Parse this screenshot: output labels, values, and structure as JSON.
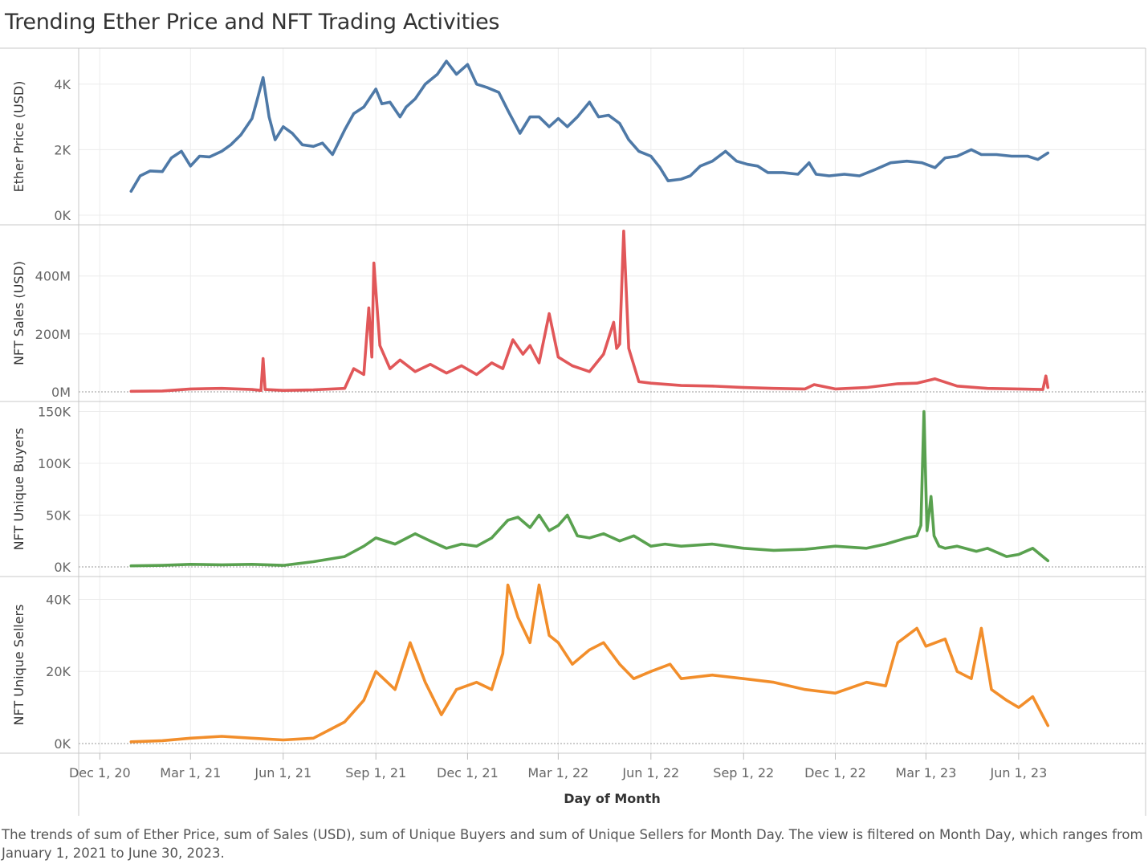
{
  "title": "Trending Ether Price and NFT Trading Activities",
  "caption": "The trends of sum of Ether Price, sum of Sales (USD), sum of Unique Buyers and sum of Unique Sellers for Month Day. The view is filtered on Month Day, which ranges from January 1, 2021 to June 30, 2023.",
  "chart_data": {
    "type": "line",
    "xlabel": "Day of Month",
    "x_ticks": [
      "Dec 1, 20",
      "Mar 1, 21",
      "Jun 1, 21",
      "Sep 1, 21",
      "Dec 1, 21",
      "Mar 1, 22",
      "Jun 1, 22",
      "Sep 1, 22",
      "Dec 1, 22",
      "Mar 1, 23",
      "Jun 1, 23"
    ],
    "x_range": [
      "2020-11-10",
      "2023-10-05"
    ],
    "grid": true,
    "panels": [
      {
        "ylabel": "Ether Price (USD)",
        "color": "#4e79a7",
        "ylim": [
          0,
          4950
        ],
        "y_ticks": [
          {
            "v": 0,
            "label": "0K"
          },
          {
            "v": 2000,
            "label": "2K"
          },
          {
            "v": 4000,
            "label": "4K"
          }
        ],
        "zero_line": false,
        "series": [
          {
            "name": "Ether Price",
            "x": [
              "2021-01-01",
              "2021-01-10",
              "2021-01-20",
              "2021-02-01",
              "2021-02-10",
              "2021-02-20",
              "2021-03-01",
              "2021-03-10",
              "2021-03-20",
              "2021-04-01",
              "2021-04-10",
              "2021-04-20",
              "2021-05-01",
              "2021-05-06",
              "2021-05-12",
              "2021-05-18",
              "2021-05-24",
              "2021-06-01",
              "2021-06-10",
              "2021-06-20",
              "2021-07-01",
              "2021-07-10",
              "2021-07-20",
              "2021-08-01",
              "2021-08-10",
              "2021-08-20",
              "2021-09-01",
              "2021-09-07",
              "2021-09-15",
              "2021-09-25",
              "2021-10-01",
              "2021-10-10",
              "2021-10-20",
              "2021-11-01",
              "2021-11-10",
              "2021-11-20",
              "2021-12-01",
              "2021-12-10",
              "2021-12-20",
              "2022-01-01",
              "2022-01-10",
              "2022-01-22",
              "2022-02-01",
              "2022-02-10",
              "2022-02-20",
              "2022-03-01",
              "2022-03-10",
              "2022-03-20",
              "2022-04-01",
              "2022-04-10",
              "2022-04-20",
              "2022-05-01",
              "2022-05-10",
              "2022-05-20",
              "2022-06-01",
              "2022-06-10",
              "2022-06-18",
              "2022-07-01",
              "2022-07-10",
              "2022-07-20",
              "2022-08-01",
              "2022-08-14",
              "2022-08-25",
              "2022-09-05",
              "2022-09-15",
              "2022-09-25",
              "2022-10-10",
              "2022-10-25",
              "2022-11-05",
              "2022-11-12",
              "2022-11-25",
              "2022-12-10",
              "2022-12-25",
              "2023-01-10",
              "2023-01-25",
              "2023-02-10",
              "2023-02-25",
              "2023-03-10",
              "2023-03-20",
              "2023-04-01",
              "2023-04-15",
              "2023-04-25",
              "2023-05-10",
              "2023-05-25",
              "2023-06-10",
              "2023-06-20",
              "2023-06-30"
            ],
            "y": [
              730,
              1200,
              1350,
              1330,
              1750,
              1950,
              1500,
              1800,
              1780,
              1950,
              2150,
              2450,
              2950,
              3500,
              4200,
              3000,
              2300,
              2700,
              2500,
              2150,
              2100,
              2200,
              1850,
              2600,
              3100,
              3300,
              3850,
              3400,
              3450,
              3000,
              3300,
              3550,
              4000,
              4300,
              4700,
              4300,
              4600,
              4000,
              3900,
              3750,
              3200,
              2500,
              3000,
              3000,
              2700,
              2950,
              2700,
              3000,
              3450,
              3000,
              3050,
              2800,
              2300,
              1950,
              1800,
              1450,
              1050,
              1100,
              1200,
              1500,
              1650,
              1950,
              1650,
              1550,
              1500,
              1300,
              1300,
              1250,
              1600,
              1250,
              1200,
              1250,
              1200,
              1400,
              1600,
              1650,
              1600,
              1450,
              1750,
              1800,
              2000,
              1850,
              1850,
              1800,
              1800,
              1700,
              1900
            ]
          }
        ]
      },
      {
        "ylabel": "NFT Sales (USD)",
        "color": "#e15759",
        "ylim": [
          0,
          560000000
        ],
        "y_ticks": [
          {
            "v": 0,
            "label": "0M"
          },
          {
            "v": 200000000,
            "label": "200M"
          },
          {
            "v": 400000000,
            "label": "400M"
          }
        ],
        "zero_line": true,
        "series": [
          {
            "name": "NFT Sales",
            "x": [
              "2021-01-01",
              "2021-02-01",
              "2021-03-01",
              "2021-04-01",
              "2021-05-01",
              "2021-05-10",
              "2021-05-12",
              "2021-05-14",
              "2021-06-01",
              "2021-07-01",
              "2021-08-01",
              "2021-08-10",
              "2021-08-20",
              "2021-08-25",
              "2021-08-28",
              "2021-08-30",
              "2021-09-05",
              "2021-09-15",
              "2021-09-25",
              "2021-10-10",
              "2021-10-25",
              "2021-11-10",
              "2021-11-25",
              "2021-12-10",
              "2021-12-25",
              "2022-01-05",
              "2022-01-15",
              "2022-01-25",
              "2022-02-01",
              "2022-02-10",
              "2022-02-20",
              "2022-03-01",
              "2022-03-15",
              "2022-04-01",
              "2022-04-15",
              "2022-04-25",
              "2022-04-28",
              "2022-05-01",
              "2022-05-05",
              "2022-05-10",
              "2022-05-20",
              "2022-06-01",
              "2022-07-01",
              "2022-08-01",
              "2022-09-01",
              "2022-10-01",
              "2022-11-01",
              "2022-11-10",
              "2022-12-01",
              "2023-01-01",
              "2023-02-01",
              "2023-02-20",
              "2023-03-10",
              "2023-04-01",
              "2023-05-01",
              "2023-06-01",
              "2023-06-25",
              "2023-06-28",
              "2023-06-30"
            ],
            "y": [
              2000000,
              3000000,
              10000000,
              12000000,
              8000000,
              5000000,
              115000000,
              8000000,
              5000000,
              7000000,
              12000000,
              80000000,
              60000000,
              290000000,
              120000000,
              445000000,
              160000000,
              80000000,
              110000000,
              70000000,
              95000000,
              65000000,
              90000000,
              60000000,
              100000000,
              80000000,
              180000000,
              130000000,
              160000000,
              100000000,
              270000000,
              120000000,
              90000000,
              70000000,
              130000000,
              240000000,
              150000000,
              165000000,
              555000000,
              150000000,
              35000000,
              30000000,
              22000000,
              20000000,
              15000000,
              12000000,
              10000000,
              25000000,
              10000000,
              15000000,
              28000000,
              30000000,
              45000000,
              20000000,
              12000000,
              10000000,
              8000000,
              55000000,
              15000000
            ]
          }
        ]
      },
      {
        "ylabel": "NFT Unique Buyers",
        "color": "#59a14f",
        "ylim": [
          0,
          155000
        ],
        "y_ticks": [
          {
            "v": 0,
            "label": "0K"
          },
          {
            "v": 50000,
            "label": "50K"
          },
          {
            "v": 100000,
            "label": "100K"
          },
          {
            "v": 150000,
            "label": "150K"
          }
        ],
        "zero_line": true,
        "series": [
          {
            "name": "NFT Unique Buyers",
            "x": [
              "2021-01-01",
              "2021-02-01",
              "2021-03-01",
              "2021-04-01",
              "2021-05-01",
              "2021-06-01",
              "2021-07-01",
              "2021-08-01",
              "2021-08-20",
              "2021-09-01",
              "2021-09-20",
              "2021-10-10",
              "2021-10-25",
              "2021-11-10",
              "2021-11-25",
              "2021-12-10",
              "2021-12-25",
              "2022-01-10",
              "2022-01-20",
              "2022-02-01",
              "2022-02-10",
              "2022-02-20",
              "2022-03-01",
              "2022-03-10",
              "2022-03-20",
              "2022-04-01",
              "2022-04-15",
              "2022-05-01",
              "2022-05-15",
              "2022-06-01",
              "2022-06-15",
              "2022-07-01",
              "2022-08-01",
              "2022-09-01",
              "2022-10-01",
              "2022-11-01",
              "2022-12-01",
              "2023-01-01",
              "2023-01-20",
              "2023-02-10",
              "2023-02-20",
              "2023-02-24",
              "2023-02-27",
              "2023-03-02",
              "2023-03-06",
              "2023-03-09",
              "2023-03-14",
              "2023-03-20",
              "2023-04-01",
              "2023-04-20",
              "2023-05-01",
              "2023-05-20",
              "2023-06-01",
              "2023-06-15",
              "2023-06-30"
            ],
            "y": [
              1000,
              1500,
              2500,
              2000,
              2500,
              1500,
              5000,
              10000,
              20000,
              28000,
              22000,
              32000,
              25000,
              18000,
              22000,
              20000,
              28000,
              45000,
              48000,
              38000,
              50000,
              35000,
              40000,
              50000,
              30000,
              28000,
              32000,
              25000,
              30000,
              20000,
              22000,
              20000,
              22000,
              18000,
              16000,
              17000,
              20000,
              18000,
              22000,
              28000,
              30000,
              40000,
              150000,
              35000,
              68000,
              30000,
              20000,
              18000,
              20000,
              15000,
              18000,
              10000,
              12000,
              18000,
              6000
            ]
          }
        ]
      },
      {
        "ylabel": "NFT Unique Sellers",
        "color": "#f28e2b",
        "ylim": [
          0,
          45000
        ],
        "y_ticks": [
          {
            "v": 0,
            "label": "0K"
          },
          {
            "v": 20000,
            "label": "20K"
          },
          {
            "v": 40000,
            "label": "40K"
          }
        ],
        "zero_line": true,
        "series": [
          {
            "name": "NFT Unique Sellers",
            "x": [
              "2021-01-01",
              "2021-02-01",
              "2021-03-01",
              "2021-04-01",
              "2021-05-01",
              "2021-06-01",
              "2021-07-01",
              "2021-08-01",
              "2021-08-20",
              "2021-09-01",
              "2021-09-20",
              "2021-10-05",
              "2021-10-20",
              "2021-11-05",
              "2021-11-20",
              "2021-12-10",
              "2021-12-25",
              "2022-01-05",
              "2022-01-10",
              "2022-01-20",
              "2022-02-01",
              "2022-02-10",
              "2022-02-20",
              "2022-03-01",
              "2022-03-15",
              "2022-04-01",
              "2022-04-15",
              "2022-05-01",
              "2022-05-15",
              "2022-06-01",
              "2022-06-20",
              "2022-07-01",
              "2022-08-01",
              "2022-09-01",
              "2022-10-01",
              "2022-11-01",
              "2022-12-01",
              "2023-01-01",
              "2023-01-20",
              "2023-02-01",
              "2023-02-20",
              "2023-03-01",
              "2023-03-20",
              "2023-04-01",
              "2023-04-15",
              "2023-04-25",
              "2023-05-05",
              "2023-05-20",
              "2023-06-01",
              "2023-06-15",
              "2023-06-30"
            ],
            "y": [
              500,
              800,
              1500,
              2000,
              1500,
              1000,
              1500,
              6000,
              12000,
              20000,
              15000,
              28000,
              17000,
              8000,
              15000,
              17000,
              15000,
              25000,
              44000,
              35000,
              28000,
              44000,
              30000,
              28000,
              22000,
              26000,
              28000,
              22000,
              18000,
              20000,
              22000,
              18000,
              19000,
              18000,
              17000,
              15000,
              14000,
              17000,
              16000,
              28000,
              32000,
              27000,
              29000,
              20000,
              18000,
              32000,
              15000,
              12000,
              10000,
              13000,
              5000
            ]
          }
        ]
      }
    ]
  }
}
